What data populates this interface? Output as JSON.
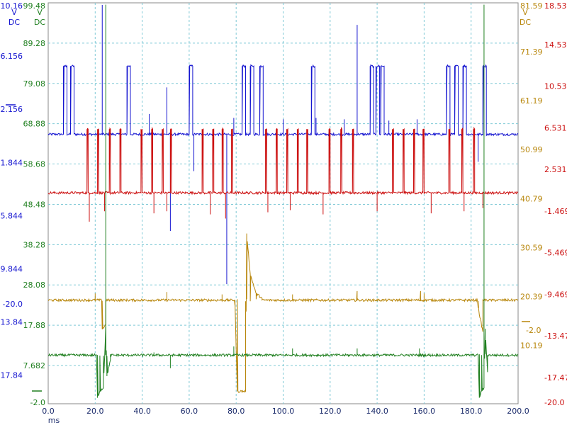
{
  "chart_data": {
    "type": "line",
    "title": "",
    "x_axis": {
      "unit": "ms",
      "range": [
        0,
        200
      ],
      "ticks": [
        "0.0",
        "20.0",
        "40.0",
        "60.0",
        "80.0",
        "100.0",
        "120.0",
        "140.0",
        "160.0",
        "180.0",
        "200.0"
      ]
    },
    "grid": true,
    "axes": [
      {
        "id": "blue",
        "color": "#1515d0",
        "side": "left",
        "unit_labels": [
          "V",
          "DC"
        ],
        "ticks": [
          "10.16",
          "6.156",
          "2.156",
          "-1.844",
          "-5.844",
          "-9.844",
          "-13.84",
          "-17.84"
        ],
        "extra_label": "-20.0",
        "range": [
          -20.0,
          10.16
        ]
      },
      {
        "id": "green",
        "color": "#1f7f1f",
        "side": "left",
        "unit_labels": [
          "V",
          "DC"
        ],
        "ticks": [
          "99.48",
          "89.28",
          "79.08",
          "68.88",
          "58.68",
          "48.48",
          "38.28",
          "28.08",
          "17.88",
          "7.682",
          "-2.0"
        ],
        "range": [
          -2.0,
          99.48
        ]
      },
      {
        "id": "gold",
        "color": "#b8860b",
        "side": "right",
        "unit_labels": [
          "V",
          "DC"
        ],
        "ticks": [
          "81.59",
          "71.39",
          "61.19",
          "50.99",
          "40.79",
          "30.59",
          "20.39",
          "10.19"
        ],
        "extra_label": "-2.0",
        "range": [
          -2.0,
          81.59
        ]
      },
      {
        "id": "red",
        "color": "#cc1010",
        "side": "right",
        "unit_labels": [],
        "ticks": [
          "18.53",
          "14.53",
          "10.53",
          "6.531",
          "2.531",
          "-1.469",
          "-5.469",
          "-9.469",
          "-13.47",
          "-17.47",
          "-20.0"
        ],
        "range": [
          -20.0,
          18.53
        ]
      }
    ],
    "series": [
      {
        "axis": "blue",
        "baseline": 0.27,
        "high": 5.4,
        "pulses": [
          [
            6.5,
            8.0
          ],
          [
            9.5,
            11.0
          ],
          [
            33.5,
            35.0
          ],
          [
            60.0,
            61.5
          ],
          [
            82.5,
            84.0
          ],
          [
            86.0,
            87.5
          ],
          [
            90.0,
            91.5
          ],
          [
            112.0,
            113.5
          ],
          [
            137.0,
            138.5
          ],
          [
            139.5,
            141.0
          ],
          [
            141.5,
            143.0
          ],
          [
            169.5,
            171.0
          ],
          [
            173.0,
            174.5
          ],
          [
            176.5,
            178.0
          ],
          [
            185.0,
            186.5
          ]
        ],
        "spikes": [
          [
            23.0,
            10.0
          ],
          [
            50.5,
            3.8
          ],
          [
            131.5,
            8.5
          ],
          [
            76.0,
            -11.0
          ],
          [
            52.0,
            -7.0
          ],
          [
            43.0,
            1.8
          ],
          [
            79.0,
            1.5
          ],
          [
            114.0,
            1.5
          ],
          [
            126.0,
            1.4
          ],
          [
            145.0,
            1.3
          ],
          [
            157.0,
            1.4
          ],
          [
            183.0,
            -1.8
          ],
          [
            62.0,
            -2.5
          ],
          [
            100.0,
            1.4
          ]
        ]
      },
      {
        "axis": "red",
        "baseline": 0.27,
        "high": 6.4,
        "pulses": [
          [
            16.5,
            17.0
          ],
          [
            21.0,
            21.5
          ],
          [
            26.0,
            26.5
          ],
          [
            30.5,
            31.0
          ],
          [
            39.5,
            40.0
          ],
          [
            44.0,
            44.5
          ],
          [
            48.5,
            49.0
          ],
          [
            52.0,
            52.5
          ],
          [
            65.5,
            66.0
          ],
          [
            70.0,
            70.5
          ],
          [
            74.0,
            74.5
          ],
          [
            78.0,
            78.5
          ],
          [
            92.5,
            93.0
          ],
          [
            97.0,
            97.5
          ],
          [
            101.5,
            102.0
          ],
          [
            106.0,
            106.5
          ],
          [
            110.0,
            110.5
          ],
          [
            119.5,
            120.0
          ],
          [
            124.5,
            125.0
          ],
          [
            129.5,
            130.0
          ],
          [
            146.5,
            147.0
          ],
          [
            151.0,
            151.5
          ],
          [
            155.5,
            156.0
          ],
          [
            159.5,
            160.0
          ],
          [
            170.5,
            171.0
          ],
          [
            176.0,
            176.5
          ],
          [
            181.0,
            181.5
          ]
        ],
        "spikes": [
          [
            17.5,
            -2.5
          ],
          [
            24.0,
            -1.5
          ],
          [
            45.0,
            -1.7
          ],
          [
            50.5,
            -1.5
          ],
          [
            69.0,
            -1.8
          ],
          [
            75.5,
            -2.2
          ],
          [
            93.5,
            -1.6
          ],
          [
            103.0,
            -1.4
          ],
          [
            117.0,
            -1.8
          ],
          [
            140.0,
            -1.5
          ],
          [
            163.0,
            -1.7
          ],
          [
            177.0,
            -1.5
          ],
          [
            185.0,
            -1.2
          ]
        ]
      },
      {
        "axis": "gold",
        "baseline": 19.6,
        "events": [
          [
            23.0,
            13.5
          ],
          [
            24.5,
            14.5
          ],
          [
            79.5,
            18.5
          ],
          [
            80.5,
            0.6
          ],
          [
            84.0,
            0.6
          ],
          [
            84.5,
            33.5
          ],
          [
            86.0,
            25.0
          ],
          [
            88.5,
            21.0
          ],
          [
            91.0,
            20.0
          ],
          [
            131.5,
            21.5
          ],
          [
            158.5,
            21.5
          ],
          [
            183.0,
            18.0
          ],
          [
            185.0,
            13.0
          ]
        ],
        "spikes": [
          [
            50.5,
            21.3
          ],
          [
            20.0,
            21.0
          ],
          [
            74.0,
            20.8
          ],
          [
            104.0,
            20.8
          ],
          [
            160.0,
            21.0
          ]
        ]
      },
      {
        "axis": "green",
        "baseline": 10.3,
        "events": [
          [
            20.5,
            10.3
          ],
          [
            21.0,
            -0.5
          ],
          [
            22.0,
            1.3
          ],
          [
            23.5,
            2.0
          ],
          [
            24.5,
            17.5
          ],
          [
            25.0,
            5.0
          ],
          [
            26.5,
            9.0
          ],
          [
            183.0,
            10.3
          ],
          [
            183.5,
            -0.5
          ],
          [
            184.5,
            1.3
          ],
          [
            185.5,
            2.0
          ],
          [
            186.0,
            17.0
          ],
          [
            187.0,
            6.0
          ]
        ],
        "spikes": [
          [
            24.5,
            99.0
          ],
          [
            185.5,
            99.0
          ],
          [
            52.0,
            7.0
          ],
          [
            79.0,
            12.5
          ],
          [
            104.0,
            12.0
          ],
          [
            131.5,
            12.0
          ],
          [
            158.0,
            12.0
          ],
          [
            45.0,
            11.0
          ]
        ]
      }
    ]
  }
}
